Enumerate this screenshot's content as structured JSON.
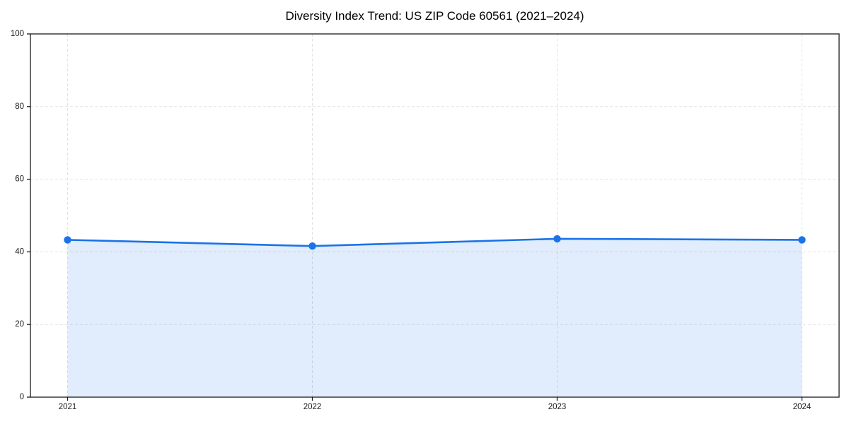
{
  "chart_data": {
    "type": "area",
    "title": "Diversity Index Trend: US ZIP Code 60561 (2021–2024)",
    "categories": [
      "2021",
      "2022",
      "2023",
      "2024"
    ],
    "values": [
      43.3,
      41.6,
      43.6,
      43.3
    ],
    "series_name": "Diversity Index",
    "xlabel": "",
    "ylabel": "",
    "ylim": [
      0,
      100
    ],
    "yticks": [
      0,
      20,
      40,
      60,
      80,
      100
    ],
    "grid": "dashed",
    "legend": "none",
    "marker": "circle",
    "colors": {
      "line": "#1a73e8",
      "marker": "#1a73e8",
      "fill": "rgba(26, 115, 232, 0.13)",
      "grid": "#e2e2e2",
      "spine": "#1a1a1a",
      "tick_label": "#1a1a1a",
      "title": "#000000",
      "background": "#ffffff"
    }
  }
}
